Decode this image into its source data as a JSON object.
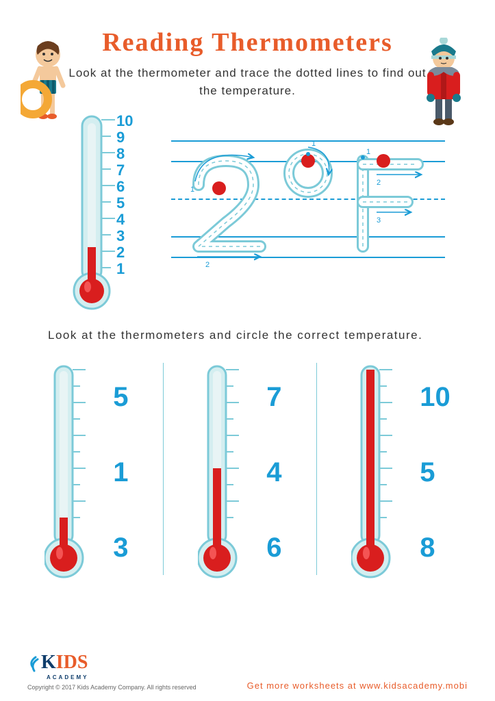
{
  "title": "Reading Thermometers",
  "title_color": "#e85c2a",
  "instruction1": "Look at the thermometer and trace the dotted lines to find out the temperature.",
  "instruction2": "Look at the thermometers and circle the correct temperature.",
  "colors": {
    "primary_blue": "#1a9cd6",
    "red": "#d91e1e",
    "teal": "#7ccad8",
    "orange": "#e85c2a",
    "navy": "#0f3d6b"
  },
  "thermo_top": {
    "scale": [
      "10",
      "9",
      "8",
      "7",
      "6",
      "5",
      "4",
      "3",
      "2",
      "1"
    ],
    "scale_color": "#1a9cd6",
    "fill_level": 2,
    "max": 10
  },
  "trace": {
    "text": "2°F",
    "dots": 3,
    "stroke_guides": [
      "1",
      "2",
      "1",
      "1",
      "2",
      "3"
    ]
  },
  "bottom_thermos": [
    {
      "options": [
        "5",
        "1",
        "3"
      ],
      "fill_level": 1,
      "max": 10
    },
    {
      "options": [
        "7",
        "4",
        "6"
      ],
      "fill_level": 4,
      "max": 10
    },
    {
      "options": [
        "10",
        "5",
        "8"
      ],
      "fill_level": 10,
      "max": 10
    }
  ],
  "option_color": "#1a9cd6",
  "logo": {
    "text_k": "K",
    "text_ids": "IDS",
    "subtitle": "ACADEMY",
    "k_color": "#0f3d6b",
    "ids_color": "#e85c2a"
  },
  "copyright": "Copyright © 2017 Kids Academy Company. All rights reserved",
  "more_text": "Get more worksheets at www.kidsacademy.mobi",
  "more_color": "#e85c2a"
}
